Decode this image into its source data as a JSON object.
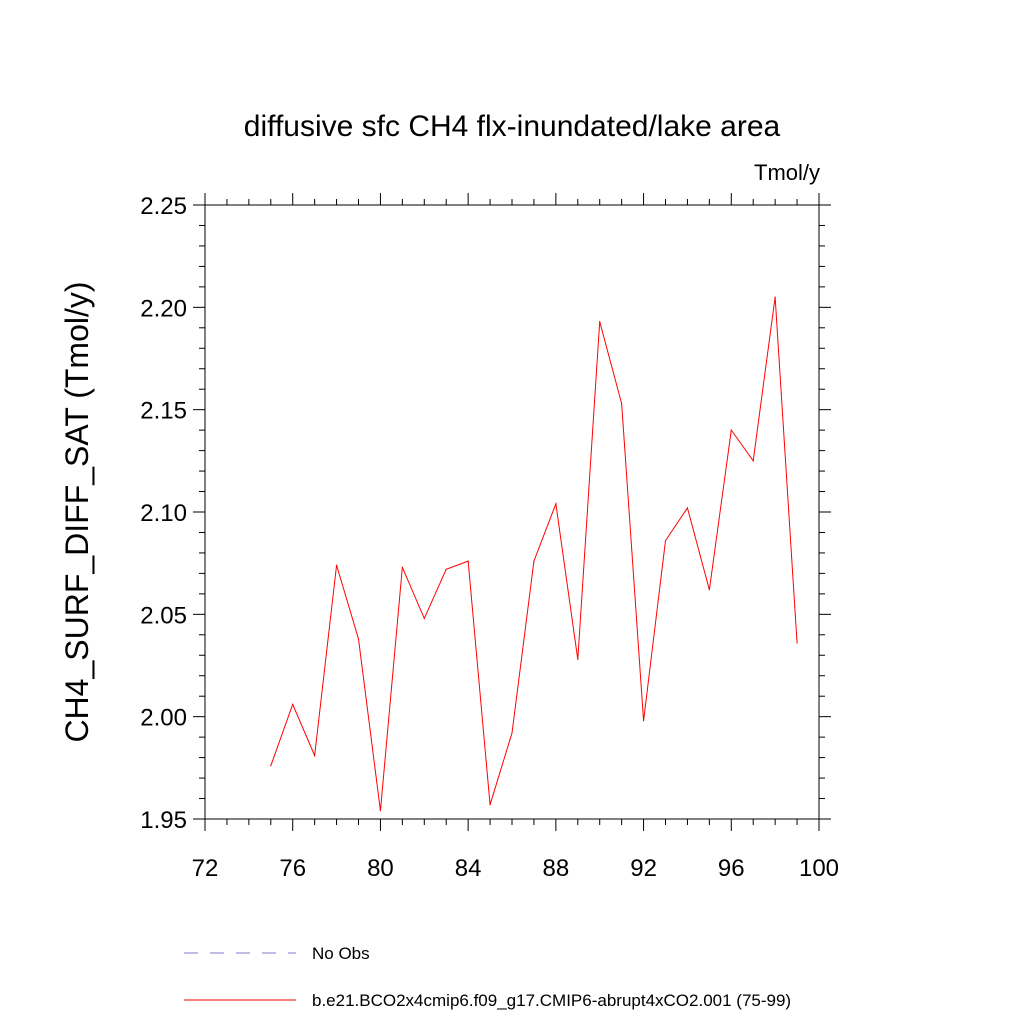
{
  "chart_data": {
    "type": "line",
    "title": "diffusive sfc CH4 flx-inundated/lake area",
    "units": "Tmol/y",
    "xlabel": "",
    "ylabel": "CH4_SURF_DIFF_SAT  (Tmol/y)",
    "xlim": [
      72,
      100
    ],
    "ylim": [
      1.95,
      2.25
    ],
    "x_ticks": [
      "72",
      "76",
      "80",
      "84",
      "88",
      "92",
      "96",
      "100"
    ],
    "y_ticks": [
      "1.95",
      "2.00",
      "2.05",
      "2.10",
      "2.15",
      "2.20",
      "2.25"
    ],
    "grid": false,
    "legend_position": "bottom",
    "series": [
      {
        "name": "b.e21.BCO2x4cmip6.f09_g17.CMIP6-abrupt4xCO2.001 (75-99)",
        "color": "#ff0000",
        "dash": "solid",
        "x": [
          75,
          76,
          77,
          78,
          79,
          80,
          81,
          82,
          83,
          84,
          85,
          86,
          87,
          88,
          89,
          90,
          91,
          92,
          93,
          94,
          95,
          96,
          97,
          98,
          99
        ],
        "values": [
          1.976,
          2.006,
          1.981,
          2.074,
          2.038,
          1.954,
          2.073,
          2.048,
          2.072,
          2.076,
          1.957,
          1.992,
          2.076,
          2.104,
          2.028,
          2.193,
          2.153,
          1.998,
          2.086,
          2.102,
          2.062,
          2.14,
          2.125,
          2.205,
          2.036
        ]
      }
    ],
    "legend": [
      {
        "label": "No Obs",
        "color": "#7b7bd1",
        "dash": "dashed"
      },
      {
        "label": "b.e21.BCO2x4cmip6.f09_g17.CMIP6-abrupt4xCO2.001 (75-99)",
        "color": "#ff0000",
        "dash": "solid"
      }
    ]
  }
}
